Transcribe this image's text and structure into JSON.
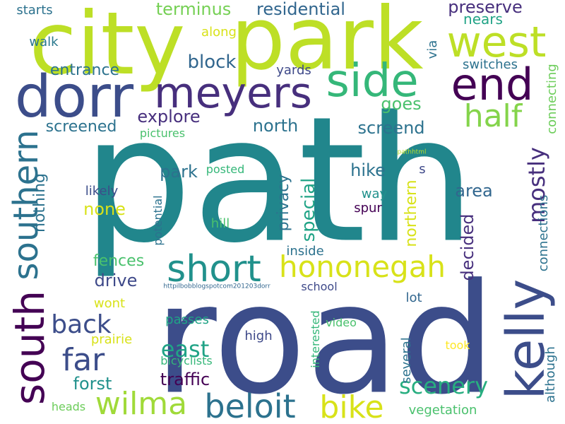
{
  "words": [
    {
      "text": "path",
      "color": "#21868c"
    },
    {
      "text": "road",
      "color": "#3c4d8a"
    },
    {
      "text": "city",
      "color": "#bddf26"
    },
    {
      "text": "park",
      "color": "#bddf26"
    },
    {
      "text": "west",
      "color": "#bddf26"
    },
    {
      "text": "dorr",
      "color": "#3c4d8a"
    },
    {
      "text": "meyers",
      "color": "#472f7d"
    },
    {
      "text": "side",
      "color": "#35b779"
    },
    {
      "text": "end",
      "color": "#440154"
    },
    {
      "text": "kelly",
      "color": "#3c4d8a"
    },
    {
      "text": "south",
      "color": "#440154"
    },
    {
      "text": "southern",
      "color": "#2c728e"
    },
    {
      "text": "short",
      "color": "#21918c"
    },
    {
      "text": "hononegah",
      "color": "#d8e219"
    },
    {
      "text": "half",
      "color": "#84d44b"
    },
    {
      "text": "beloit",
      "color": "#2c728e"
    },
    {
      "text": "bike",
      "color": "#d8e219"
    },
    {
      "text": "wilma",
      "color": "#a0da39"
    },
    {
      "text": "far",
      "color": "#3c4d8a"
    },
    {
      "text": "back",
      "color": "#3c4d8a"
    },
    {
      "text": "east",
      "color": "#20a386"
    },
    {
      "text": "scenery",
      "color": "#28ae80"
    },
    {
      "text": "terminus",
      "color": "#75d054"
    },
    {
      "text": "residential",
      "color": "#31668e"
    },
    {
      "text": "preserve",
      "color": "#472f7d"
    },
    {
      "text": "nears",
      "color": "#20a386"
    },
    {
      "text": "along",
      "color": "#d8e219"
    },
    {
      "text": "walk",
      "color": "#2a788e"
    },
    {
      "text": "starts",
      "color": "#2c728e"
    },
    {
      "text": "via",
      "color": "#2c728e"
    },
    {
      "text": "block",
      "color": "#31668e"
    },
    {
      "text": "entrance",
      "color": "#2c728e"
    },
    {
      "text": "yards",
      "color": "#3e4989"
    },
    {
      "text": "switches",
      "color": "#2c728e"
    },
    {
      "text": "connecting",
      "color": "#6ccd5a"
    },
    {
      "text": "goes",
      "color": "#4ac16d"
    },
    {
      "text": "explore",
      "color": "#472f7d"
    },
    {
      "text": "north",
      "color": "#2c728e"
    },
    {
      "text": "screend",
      "color": "#2c728e"
    },
    {
      "text": "screened",
      "color": "#2c728e"
    },
    {
      "text": "pictures",
      "color": "#4ac16d"
    },
    {
      "text": "mostly",
      "color": "#472f7d"
    },
    {
      "text": "pathhtml",
      "color": "#b5de2b"
    },
    {
      "text": "nothing",
      "color": "#2c728e"
    },
    {
      "text": "park",
      "color": "#2c728e"
    },
    {
      "text": "posted",
      "color": "#35b779"
    },
    {
      "text": "privacy",
      "color": "#2c728e"
    },
    {
      "text": "hike",
      "color": "#2c728e"
    },
    {
      "text": "s",
      "color": "#3e4989"
    },
    {
      "text": "special",
      "color": "#20a386"
    },
    {
      "text": "likely",
      "color": "#3c4d8a"
    },
    {
      "text": "area",
      "color": "#31668e"
    },
    {
      "text": "none",
      "color": "#d8e219"
    },
    {
      "text": "way",
      "color": "#21918c"
    },
    {
      "text": "northern",
      "color": "#d8e219"
    },
    {
      "text": "spur",
      "color": "#440154"
    },
    {
      "text": "connections",
      "color": "#2c728e"
    },
    {
      "text": "hill",
      "color": "#4ac16d"
    },
    {
      "text": "potential",
      "color": "#2c728e"
    },
    {
      "text": "decided",
      "color": "#472f7d"
    },
    {
      "text": "fences",
      "color": "#4ac16d"
    },
    {
      "text": "inside",
      "color": "#2c728e"
    },
    {
      "text": "drive",
      "color": "#3e4989"
    },
    {
      "text": "httpilbobblogspotcom201203dorr",
      "color": "#31668e"
    },
    {
      "text": "school",
      "color": "#3e4989"
    },
    {
      "text": "wont",
      "color": "#d8e219"
    },
    {
      "text": "lot",
      "color": "#31668e"
    },
    {
      "text": "passes",
      "color": "#20a386"
    },
    {
      "text": "interested",
      "color": "#35b779"
    },
    {
      "text": "video",
      "color": "#4ac16d"
    },
    {
      "text": "high",
      "color": "#3e4989"
    },
    {
      "text": "prairie",
      "color": "#d8e219"
    },
    {
      "text": "although",
      "color": "#2c728e"
    },
    {
      "text": "took",
      "color": "#fde725"
    },
    {
      "text": "bicyclists",
      "color": "#35b779"
    },
    {
      "text": "forst",
      "color": "#21918c"
    },
    {
      "text": "traffic",
      "color": "#440154"
    },
    {
      "text": "several",
      "color": "#2c728e"
    },
    {
      "text": "heads",
      "color": "#6ccd5a"
    },
    {
      "text": "vegetation",
      "color": "#4ac16d"
    }
  ]
}
